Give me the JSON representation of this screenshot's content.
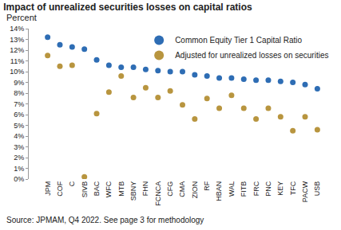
{
  "chart_data": {
    "type": "scatter",
    "title": "Impact of unrealized securities losses on capital ratios",
    "subtitle": "Percent",
    "source": "Source: JPMAM, Q4 2022. See page 3 for methodology",
    "categories": [
      "JPM",
      "COF",
      "C",
      "SIVB",
      "BAC",
      "WFC",
      "MTB",
      "SBNY",
      "FHN",
      "FCNCA",
      "CFG",
      "CMA",
      "ZION",
      "RF",
      "HBAN",
      "WAL",
      "FITB",
      "FRC",
      "PNC",
      "KEY",
      "TFC",
      "PACW",
      "USB"
    ],
    "series": [
      {
        "name": "Common Equity Tier 1 Capital Ratio",
        "color": "#2e6db4",
        "values": [
          13.2,
          12.5,
          12.3,
          12.1,
          11.1,
          10.6,
          10.4,
          10.4,
          10.2,
          10.1,
          10.0,
          10.0,
          9.7,
          9.6,
          9.4,
          9.4,
          9.3,
          9.2,
          9.2,
          9.1,
          9.0,
          8.8,
          8.4
        ]
      },
      {
        "name": "Adjusted for unrealized losses on securities",
        "color": "#b8953f",
        "values": [
          11.5,
          10.5,
          10.6,
          0.2,
          6.1,
          8.1,
          9.6,
          7.6,
          8.5,
          7.6,
          8.2,
          6.9,
          5.6,
          7.5,
          6.6,
          7.8,
          6.6,
          5.6,
          6.6,
          5.8,
          4.5,
          5.8,
          4.6
        ]
      }
    ],
    "marker": "circle",
    "ylim": [
      0,
      14
    ],
    "yticks": [
      {
        "value": 0,
        "label": "0%"
      },
      {
        "value": 1,
        "label": "1%"
      },
      {
        "value": 2,
        "label": "2%"
      },
      {
        "value": 3,
        "label": "3%"
      },
      {
        "value": 4,
        "label": "4%"
      },
      {
        "value": 5,
        "label": "5%"
      },
      {
        "value": 6,
        "label": "6%"
      },
      {
        "value": 7,
        "label": "7%"
      },
      {
        "value": 8,
        "label": "8%"
      },
      {
        "value": 9,
        "label": "9%"
      },
      {
        "value": 10,
        "label": "10%"
      },
      {
        "value": 11,
        "label": "11%"
      },
      {
        "value": 12,
        "label": "12%"
      },
      {
        "value": 13,
        "label": "13%"
      },
      {
        "value": 14,
        "label": "14%"
      }
    ],
    "grid": false,
    "legend": "top-right"
  }
}
